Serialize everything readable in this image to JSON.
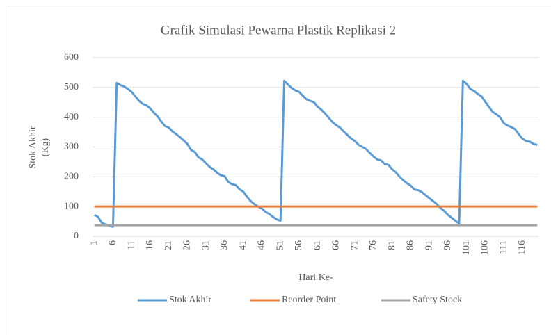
{
  "chart_data": {
    "type": "line",
    "title": "Grafik Simulasi Pewarna Plastik Replikasi 2",
    "xlabel": "Hari Ke-",
    "ylabel": [
      "Stok Akhir",
      "(Kg)"
    ],
    "categories": [
      "1",
      null,
      null,
      null,
      null,
      "6",
      null,
      null,
      null,
      null,
      "11",
      null,
      null,
      null,
      null,
      "16",
      null,
      null,
      null,
      null,
      "21",
      null,
      null,
      null,
      null,
      "26",
      null,
      null,
      null,
      null,
      "31",
      null,
      null,
      null,
      null,
      "36",
      null,
      null,
      null,
      null,
      "41",
      null,
      null,
      null,
      null,
      "46",
      null,
      null,
      null,
      null,
      "51",
      null,
      null,
      null,
      null,
      "56",
      null,
      null,
      null,
      null,
      "61",
      null,
      null,
      null,
      null,
      "66",
      null,
      null,
      null,
      null,
      "71",
      null,
      null,
      null,
      null,
      "76",
      null,
      null,
      null,
      null,
      "81",
      null,
      null,
      null,
      null,
      "86",
      null,
      null,
      null,
      null,
      "91",
      null,
      null,
      null,
      null,
      "96",
      null,
      null,
      null,
      null,
      "101",
      null,
      null,
      null,
      null,
      "106",
      null,
      null,
      null,
      null,
      "111",
      null,
      null,
      null,
      null,
      "116",
      null,
      null,
      null,
      null
    ],
    "series": [
      {
        "name": "Stok Akhir",
        "color": "#5b9bd5",
        "values": [
          72,
          65,
          45,
          40,
          35,
          32,
          515,
          508,
          503,
          495,
          485,
          470,
          455,
          445,
          440,
          430,
          415,
          403,
          385,
          370,
          365,
          352,
          343,
          333,
          322,
          310,
          290,
          283,
          265,
          258,
          245,
          233,
          225,
          213,
          205,
          202,
          182,
          175,
          172,
          158,
          150,
          133,
          118,
          108,
          100,
          93,
          82,
          75,
          65,
          57,
          52,
          522,
          510,
          498,
          490,
          485,
          472,
          460,
          455,
          450,
          435,
          425,
          412,
          398,
          383,
          373,
          365,
          352,
          340,
          328,
          320,
          307,
          300,
          293,
          280,
          268,
          258,
          255,
          243,
          240,
          225,
          215,
          200,
          188,
          178,
          170,
          157,
          155,
          148,
          138,
          128,
          118,
          108,
          95,
          85,
          72,
          62,
          52,
          43,
          522,
          512,
          495,
          488,
          478,
          470,
          452,
          435,
          418,
          410,
          400,
          380,
          372,
          367,
          360,
          343,
          328,
          320,
          318,
          310,
          307
        ]
      },
      {
        "name": "Reorder Point",
        "color": "#ed7d31",
        "values": [
          100,
          100,
          100,
          100,
          100,
          100,
          100,
          100,
          100,
          100,
          100,
          100,
          100,
          100,
          100,
          100,
          100,
          100,
          100,
          100,
          100,
          100,
          100,
          100,
          100,
          100,
          100,
          100,
          100,
          100,
          100,
          100,
          100,
          100,
          100,
          100,
          100,
          100,
          100,
          100,
          100,
          100,
          100,
          100,
          100,
          100,
          100,
          100,
          100,
          100,
          100,
          100,
          100,
          100,
          100,
          100,
          100,
          100,
          100,
          100,
          100,
          100,
          100,
          100,
          100,
          100,
          100,
          100,
          100,
          100,
          100,
          100,
          100,
          100,
          100,
          100,
          100,
          100,
          100,
          100,
          100,
          100,
          100,
          100,
          100,
          100,
          100,
          100,
          100,
          100,
          100,
          100,
          100,
          100,
          100,
          100,
          100,
          100,
          100,
          100,
          100,
          100,
          100,
          100,
          100,
          100,
          100,
          100,
          100,
          100,
          100,
          100,
          100,
          100,
          100,
          100,
          100,
          100,
          100,
          100
        ]
      },
      {
        "name": "Safety Stock",
        "color": "#a5a5a5",
        "values": [
          37,
          37,
          37,
          37,
          37,
          37,
          37,
          37,
          37,
          37,
          37,
          37,
          37,
          37,
          37,
          37,
          37,
          37,
          37,
          37,
          37,
          37,
          37,
          37,
          37,
          37,
          37,
          37,
          37,
          37,
          37,
          37,
          37,
          37,
          37,
          37,
          37,
          37,
          37,
          37,
          37,
          37,
          37,
          37,
          37,
          37,
          37,
          37,
          37,
          37,
          37,
          37,
          37,
          37,
          37,
          37,
          37,
          37,
          37,
          37,
          37,
          37,
          37,
          37,
          37,
          37,
          37,
          37,
          37,
          37,
          37,
          37,
          37,
          37,
          37,
          37,
          37,
          37,
          37,
          37,
          37,
          37,
          37,
          37,
          37,
          37,
          37,
          37,
          37,
          37,
          37,
          37,
          37,
          37,
          37,
          37,
          37,
          37,
          37,
          37,
          37,
          37,
          37,
          37,
          37,
          37,
          37,
          37,
          37,
          37,
          37,
          37,
          37,
          37,
          37,
          37,
          37,
          37,
          37,
          37
        ]
      }
    ],
    "ylim": [
      0,
      600
    ],
    "yticks": [
      0,
      100,
      200,
      300,
      400,
      500,
      600
    ],
    "grid": true,
    "legend": "bottom"
  }
}
